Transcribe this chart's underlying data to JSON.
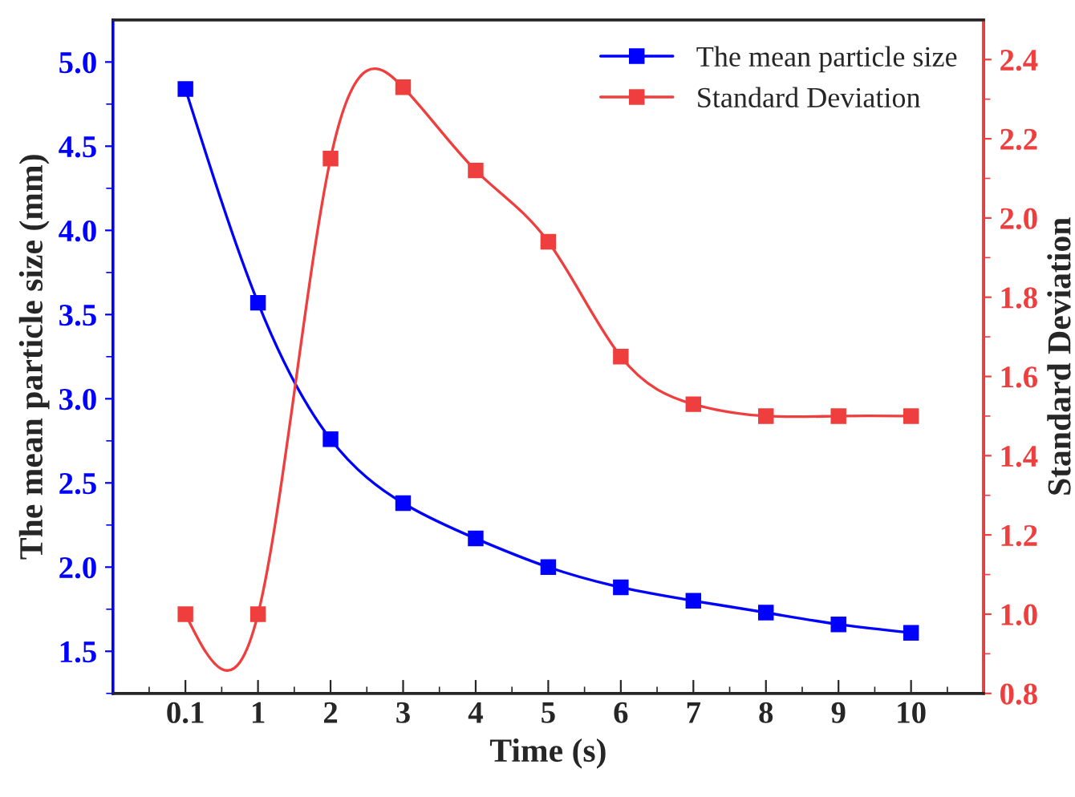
{
  "chart_data": {
    "type": "line",
    "xlabel": "Time (s)",
    "ylabel": "The mean particle size (mm)",
    "y2label": "Standard Deviation",
    "categories": [
      "0.1",
      "1",
      "2",
      "3",
      "4",
      "5",
      "6",
      "7",
      "8",
      "9",
      "10"
    ],
    "series": [
      {
        "name": "The mean particle size",
        "color": "#0000ff",
        "values": [
          4.84,
          3.57,
          2.76,
          2.38,
          2.17,
          2.0,
          1.88,
          1.8,
          1.73,
          1.66,
          1.61
        ]
      },
      {
        "name": "Standard Deviation",
        "color": "#ef3e3e",
        "axis": "y2",
        "values": [
          1.0,
          1.0,
          2.15,
          2.33,
          2.12,
          1.94,
          1.65,
          1.53,
          1.5,
          1.5,
          1.5
        ]
      }
    ],
    "ylim": [
      1.25,
      5.25
    ],
    "yticks": [
      {
        "value": 1.5,
        "label": "1.5"
      },
      {
        "value": 2.0,
        "label": "2.0"
      },
      {
        "value": 2.5,
        "label": "2.5"
      },
      {
        "value": 3.0,
        "label": "3.0"
      },
      {
        "value": 3.5,
        "label": "3.5"
      },
      {
        "value": 4.0,
        "label": "4.0"
      },
      {
        "value": 4.5,
        "label": "4.5"
      },
      {
        "value": 5.0,
        "label": "5.0"
      }
    ],
    "y2lim": [
      0.8,
      2.5
    ],
    "y2ticks": [
      {
        "value": 0.8,
        "label": "0.8"
      },
      {
        "value": 1.0,
        "label": "1.0"
      },
      {
        "value": 1.2,
        "label": "1.2"
      },
      {
        "value": 1.4,
        "label": "1.4"
      },
      {
        "value": 1.6,
        "label": "1.6"
      },
      {
        "value": 1.8,
        "label": "1.8"
      },
      {
        "value": 2.0,
        "label": "2.0"
      },
      {
        "value": 2.2,
        "label": "2.2"
      },
      {
        "value": 2.4,
        "label": "2.4"
      }
    ],
    "marker": "square",
    "line_style": "solid",
    "legend": "top right",
    "grid": false
  }
}
